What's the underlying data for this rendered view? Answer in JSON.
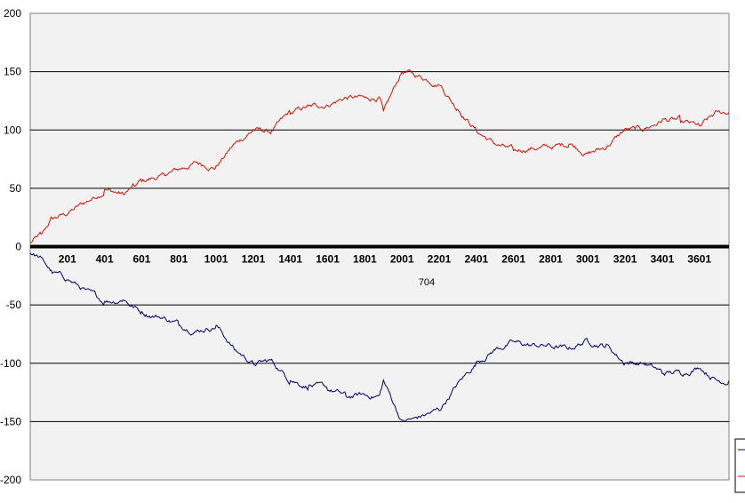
{
  "chart_data": {
    "type": "line",
    "title": "",
    "xlabel": "704",
    "ylabel": "",
    "ylim": [
      -200,
      200
    ],
    "xlim": [
      1,
      3760
    ],
    "y_ticks": [
      200,
      150,
      100,
      50,
      0,
      -50,
      -100,
      -150,
      -200
    ],
    "x_ticks": [
      201,
      401,
      601,
      801,
      1001,
      1201,
      1401,
      1601,
      1801,
      2001,
      2201,
      2401,
      2601,
      2801,
      3001,
      3201,
      3401,
      3601
    ],
    "grid": "horizontal",
    "legend": "bottom-right, partially cut off",
    "colors": {
      "plot_bg": "#f2f2f2",
      "grid": "#000000",
      "upper_series": "#cc1100",
      "lower_series": "#000066"
    },
    "series": [
      {
        "color": "#cc1100",
        "x": [
          1,
          60,
          120,
          201,
          300,
          401,
          500,
          560,
          601,
          700,
          801,
          900,
          1001,
          1100,
          1201,
          1300,
          1401,
          1500,
          1601,
          1700,
          1801,
          1880,
          1901,
          2001,
          2060,
          2201,
          2300,
          2401,
          2500,
          2601,
          2700,
          2801,
          2900,
          3001,
          3100,
          3201,
          3300,
          3401,
          3500,
          3601,
          3700,
          3760
        ],
        "y": [
          3,
          10,
          25,
          28,
          38,
          48,
          45,
          52,
          57,
          60,
          66,
          72,
          68,
          88,
          100,
          98,
          115,
          120,
          122,
          128,
          127,
          128,
          115,
          150,
          148,
          140,
          118,
          100,
          88,
          82,
          85,
          85,
          88,
          80,
          85,
          100,
          100,
          108,
          108,
          103,
          115,
          115
        ]
      },
      {
        "color": "#000066",
        "x": [
          1,
          60,
          120,
          201,
          300,
          401,
          500,
          560,
          601,
          700,
          801,
          900,
          1001,
          1100,
          1201,
          1300,
          1401,
          1500,
          1601,
          1700,
          1801,
          1880,
          1901,
          2001,
          2060,
          2201,
          2300,
          2401,
          2500,
          2601,
          2700,
          2801,
          2900,
          3001,
          3100,
          3201,
          3300,
          3401,
          3500,
          3601,
          3700,
          3760
        ],
        "y": [
          -5,
          -10,
          -22,
          -28,
          -38,
          -48,
          -45,
          -52,
          -57,
          -60,
          -66,
          -72,
          -68,
          -88,
          -100,
          -98,
          -115,
          -120,
          -122,
          -128,
          -127,
          -128,
          -115,
          -150,
          -148,
          -140,
          -118,
          -100,
          -88,
          -82,
          -85,
          -85,
          -88,
          -80,
          -85,
          -100,
          -100,
          -108,
          -108,
          -103,
          -115,
          -115
        ]
      }
    ]
  }
}
